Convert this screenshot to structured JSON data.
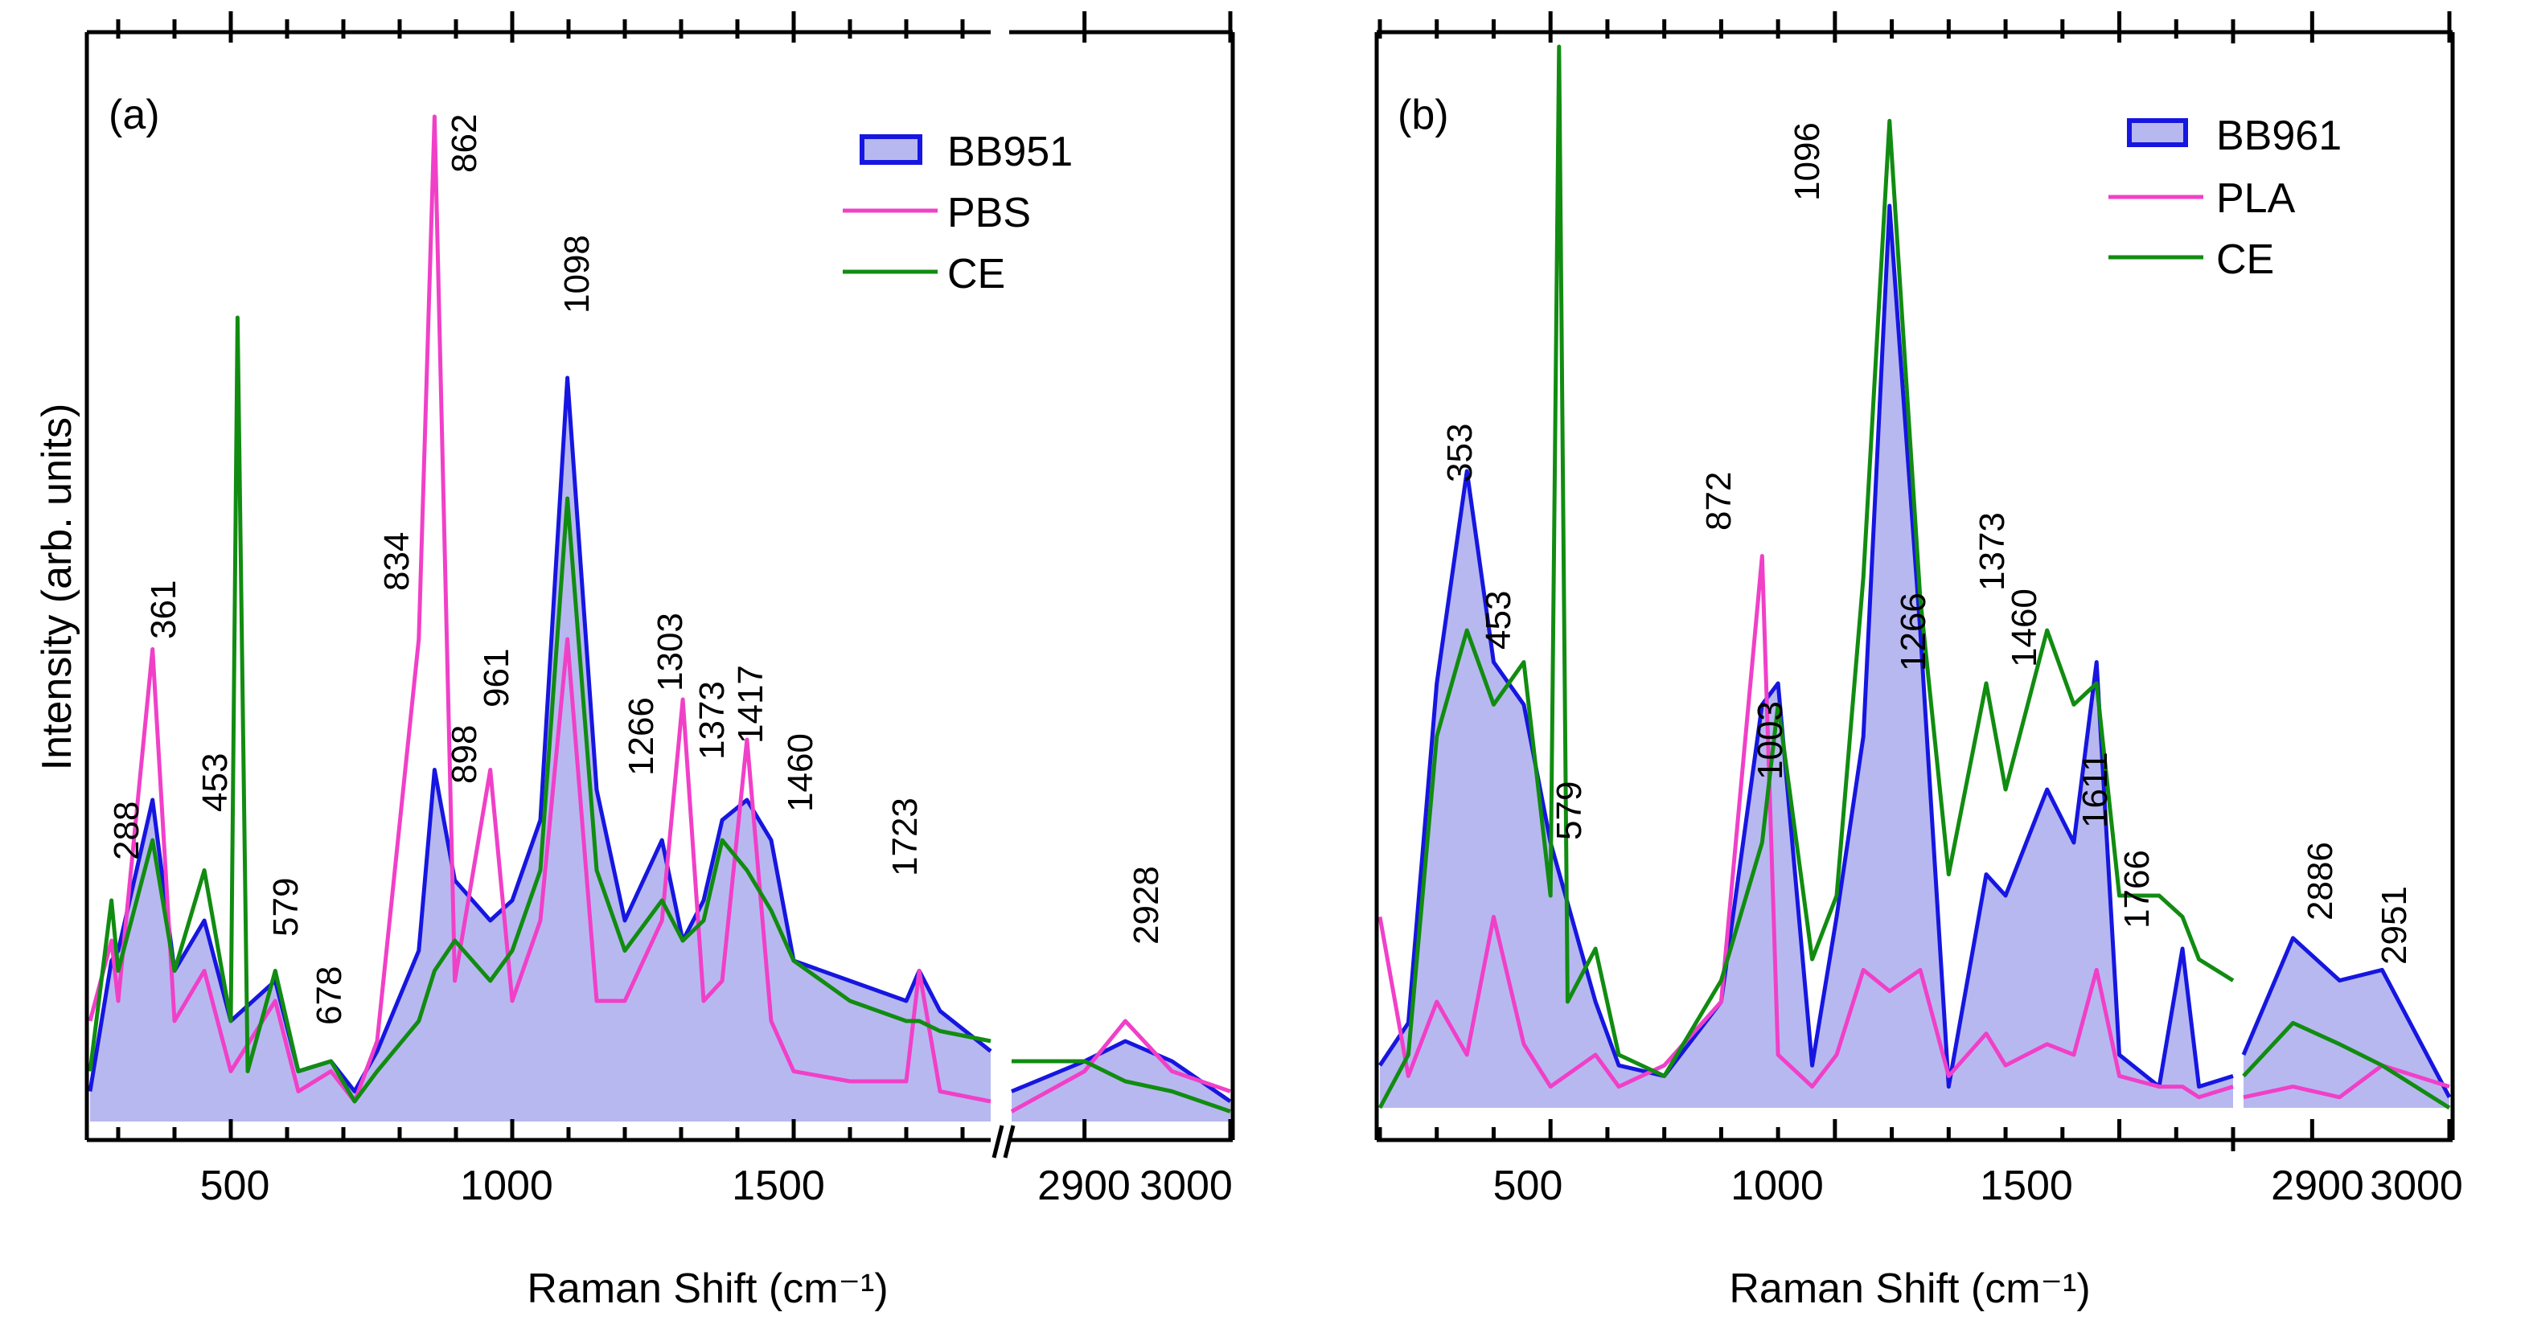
{
  "chart_data": [
    {
      "panel": "(a)",
      "type": "line",
      "xlabel": "Raman Shift (cm⁻¹)",
      "ylabel": "Intensity (arb. units)",
      "x_segments": [
        {
          "range": [
            250,
            1850
          ]
        },
        {
          "range": [
            2850,
            3000
          ]
        }
      ],
      "x_ticks": [
        "500",
        "1000",
        "1500",
        "2900",
        "3000"
      ],
      "legend": [
        "BB951",
        "PBS",
        "CE"
      ],
      "colors": {
        "BB951": "#1616e0",
        "BB951_fill": "#b8b8f0",
        "PBS": "#f040c8",
        "CE": "#118c11"
      },
      "peak_labels": [
        "288",
        "361",
        "453",
        "579",
        "678",
        "834",
        "862",
        "898",
        "961",
        "1098",
        "1266",
        "1303",
        "1373",
        "1417",
        "1460",
        "1723",
        "2928"
      ],
      "series": [
        {
          "name": "BB951",
          "x": [
            250,
            288,
            300,
            361,
            400,
            453,
            500,
            579,
            620,
            678,
            720,
            760,
            834,
            862,
            898,
            961,
            1000,
            1050,
            1098,
            1150,
            1200,
            1266,
            1303,
            1340,
            1373,
            1417,
            1460,
            1500,
            1600,
            1700,
            1723,
            1760,
            1850,
            2850,
            2900,
            2928,
            2960,
            3000
          ],
          "y": [
            0.03,
            0.16,
            0.17,
            0.32,
            0.15,
            0.2,
            0.1,
            0.14,
            0.05,
            0.06,
            0.03,
            0.07,
            0.17,
            0.35,
            0.24,
            0.2,
            0.22,
            0.3,
            0.74,
            0.33,
            0.2,
            0.28,
            0.18,
            0.22,
            0.3,
            0.32,
            0.28,
            0.16,
            0.14,
            0.12,
            0.15,
            0.11,
            0.07,
            0.03,
            0.06,
            0.08,
            0.06,
            0.02
          ]
        },
        {
          "name": "PBS",
          "x": [
            250,
            288,
            300,
            361,
            400,
            453,
            500,
            579,
            620,
            678,
            720,
            760,
            834,
            862,
            898,
            961,
            1000,
            1050,
            1098,
            1150,
            1200,
            1266,
            1303,
            1340,
            1373,
            1417,
            1460,
            1500,
            1600,
            1700,
            1723,
            1760,
            1850,
            2850,
            2900,
            2928,
            2960,
            3000
          ],
          "y": [
            0.1,
            0.18,
            0.12,
            0.47,
            0.1,
            0.15,
            0.05,
            0.12,
            0.03,
            0.05,
            0.02,
            0.08,
            0.48,
            1.0,
            0.14,
            0.35,
            0.12,
            0.2,
            0.48,
            0.12,
            0.12,
            0.2,
            0.42,
            0.12,
            0.14,
            0.38,
            0.1,
            0.05,
            0.04,
            0.04,
            0.15,
            0.03,
            0.02,
            0.01,
            0.05,
            0.1,
            0.05,
            0.03
          ]
        },
        {
          "name": "CE",
          "x": [
            250,
            288,
            300,
            361,
            400,
            453,
            500,
            512,
            530,
            579,
            620,
            678,
            720,
            760,
            834,
            862,
            898,
            961,
            1000,
            1050,
            1098,
            1150,
            1200,
            1266,
            1303,
            1340,
            1373,
            1417,
            1460,
            1500,
            1600,
            1700,
            1723,
            1760,
            1850,
            2850,
            2900,
            2928,
            2960,
            3000
          ],
          "y": [
            0.05,
            0.22,
            0.15,
            0.28,
            0.15,
            0.25,
            0.1,
            0.8,
            0.05,
            0.15,
            0.05,
            0.06,
            0.02,
            0.05,
            0.1,
            0.15,
            0.18,
            0.14,
            0.17,
            0.25,
            0.62,
            0.25,
            0.17,
            0.22,
            0.18,
            0.2,
            0.28,
            0.25,
            0.21,
            0.16,
            0.12,
            0.1,
            0.1,
            0.09,
            0.08,
            0.06,
            0.06,
            0.04,
            0.03,
            0.01
          ]
        }
      ]
    },
    {
      "panel": "(b)",
      "type": "line",
      "xlabel": "Raman Shift (cm⁻¹)",
      "ylabel": "",
      "x_segments": [
        {
          "range": [
            200,
            1700
          ]
        },
        {
          "range": [
            2850,
            3000
          ]
        }
      ],
      "x_ticks": [
        "500",
        "1000",
        "1500",
        "2900",
        "3000"
      ],
      "legend": [
        "BB961",
        "PLA",
        "CE"
      ],
      "colors": {
        "BB961": "#1616e0",
        "BB961_fill": "#b8b8f0",
        "PLA": "#f040c8",
        "CE": "#118c11"
      },
      "peak_labels": [
        "353",
        "453",
        "579",
        "872",
        "1003",
        "1096",
        "1266",
        "1373",
        "1460",
        "1611",
        "1766",
        "2886",
        "2951"
      ],
      "series": [
        {
          "name": "BB961",
          "x": [
            200,
            250,
            300,
            353,
            400,
            453,
            500,
            579,
            620,
            700,
            800,
            872,
            900,
            960,
            1003,
            1050,
            1096,
            1150,
            1200,
            1266,
            1300,
            1373,
            1420,
            1460,
            1500,
            1570,
            1611,
            1640,
            1700,
            2850,
            2886,
            2920,
            2951,
            3000
          ],
          "y": [
            0.04,
            0.08,
            0.4,
            0.6,
            0.42,
            0.38,
            0.25,
            0.1,
            0.04,
            0.03,
            0.1,
            0.38,
            0.4,
            0.04,
            0.18,
            0.35,
            0.85,
            0.45,
            0.02,
            0.22,
            0.2,
            0.3,
            0.25,
            0.42,
            0.05,
            0.02,
            0.15,
            0.02,
            0.03,
            0.05,
            0.16,
            0.12,
            0.13,
            0.01
          ]
        },
        {
          "name": "PLA",
          "x": [
            200,
            250,
            300,
            353,
            400,
            453,
            500,
            579,
            620,
            700,
            800,
            872,
            900,
            960,
            1003,
            1050,
            1096,
            1150,
            1200,
            1266,
            1300,
            1373,
            1420,
            1460,
            1500,
            1570,
            1611,
            1640,
            1700,
            2850,
            2886,
            2920,
            2951,
            3000
          ],
          "y": [
            0.18,
            0.03,
            0.1,
            0.05,
            0.18,
            0.06,
            0.02,
            0.05,
            0.02,
            0.04,
            0.1,
            0.52,
            0.05,
            0.02,
            0.05,
            0.13,
            0.11,
            0.13,
            0.03,
            0.07,
            0.04,
            0.06,
            0.05,
            0.13,
            0.03,
            0.02,
            0.02,
            0.01,
            0.02,
            0.01,
            0.02,
            0.01,
            0.04,
            0.02
          ]
        },
        {
          "name": "CE",
          "x": [
            200,
            250,
            300,
            353,
            400,
            453,
            500,
            515,
            530,
            579,
            620,
            700,
            800,
            872,
            900,
            960,
            1003,
            1050,
            1096,
            1150,
            1200,
            1266,
            1300,
            1373,
            1420,
            1460,
            1500,
            1570,
            1611,
            1640,
            1700,
            2850,
            2886,
            2920,
            2951,
            3000
          ],
          "y": [
            0.0,
            0.05,
            0.35,
            0.45,
            0.38,
            0.42,
            0.2,
            1.0,
            0.1,
            0.15,
            0.05,
            0.03,
            0.12,
            0.25,
            0.38,
            0.14,
            0.2,
            0.5,
            0.93,
            0.48,
            0.22,
            0.4,
            0.3,
            0.45,
            0.38,
            0.4,
            0.2,
            0.2,
            0.18,
            0.14,
            0.12,
            0.03,
            0.08,
            0.06,
            0.04,
            0.0
          ]
        }
      ]
    }
  ]
}
